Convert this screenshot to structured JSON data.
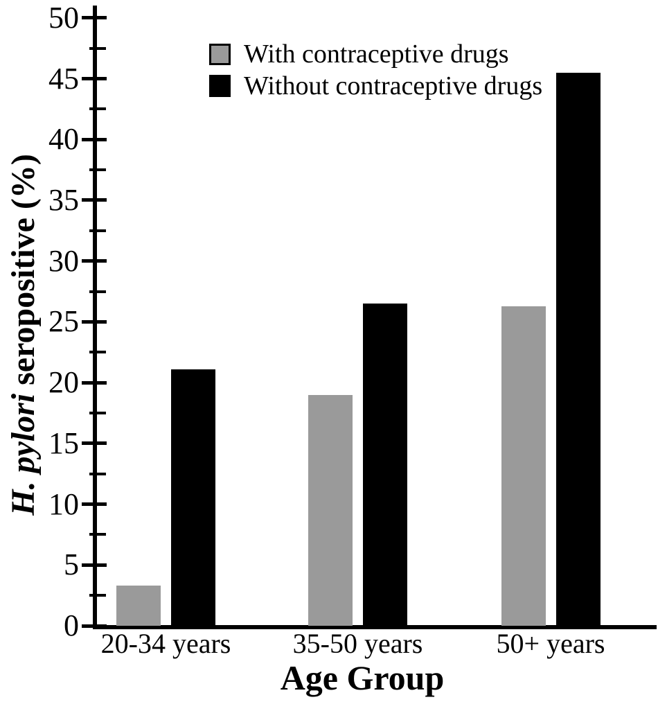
{
  "chart_data": {
    "type": "bar",
    "title": "",
    "categories": [
      "20-34 years",
      "35-50 years",
      "50+ years"
    ],
    "series": [
      {
        "name": "With contraceptive drugs",
        "color": "#9a9a9a",
        "values": [
          3.3,
          19.0,
          26.3
        ]
      },
      {
        "name": "Without contraceptive drugs",
        "color": "#000000",
        "values": [
          21.1,
          26.5,
          45.5
        ]
      }
    ],
    "xlabel": "Age Group",
    "ylabel": "H. pylori seropositive (%)",
    "ylabel_italic_part": "H. pylori",
    "ylabel_regular_part": " seropositive (%)",
    "ylim": [
      0,
      50
    ],
    "y_major_ticks": [
      0,
      5,
      10,
      15,
      20,
      25,
      30,
      35,
      40,
      45,
      50
    ],
    "y_minor_tick_step": 2.5,
    "grid": false,
    "legend_position": "top-left-inside",
    "axis_color": "#000000",
    "background_color": "#ffffff"
  }
}
